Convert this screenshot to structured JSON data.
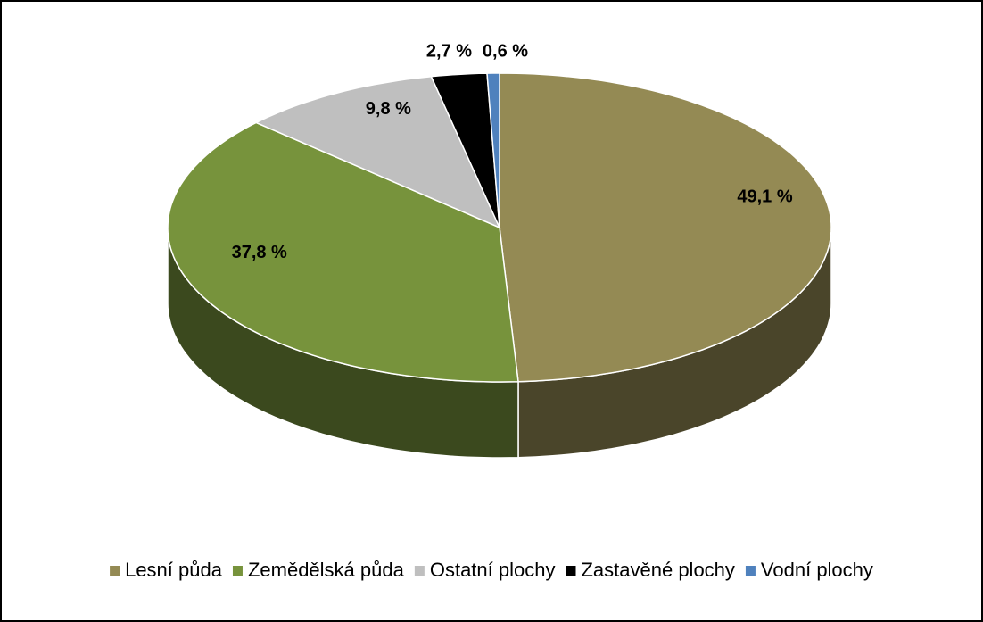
{
  "chart_data": {
    "type": "pie",
    "categories": [
      "Lesní půda",
      "Zemědělská půda",
      "Ostatní plochy",
      "Zastavěné plochy",
      "Vodní plochy"
    ],
    "values": [
      49.1,
      37.8,
      9.8,
      2.7,
      0.6
    ],
    "value_labels": [
      "49,1 %",
      "37,8 %",
      "9,8 %",
      "2,7 %",
      "0,6 %"
    ],
    "colors": [
      "#948a54",
      "#77933c",
      "#bfbfbf",
      "#000000",
      "#4f81bd"
    ],
    "legend": "bottom"
  }
}
